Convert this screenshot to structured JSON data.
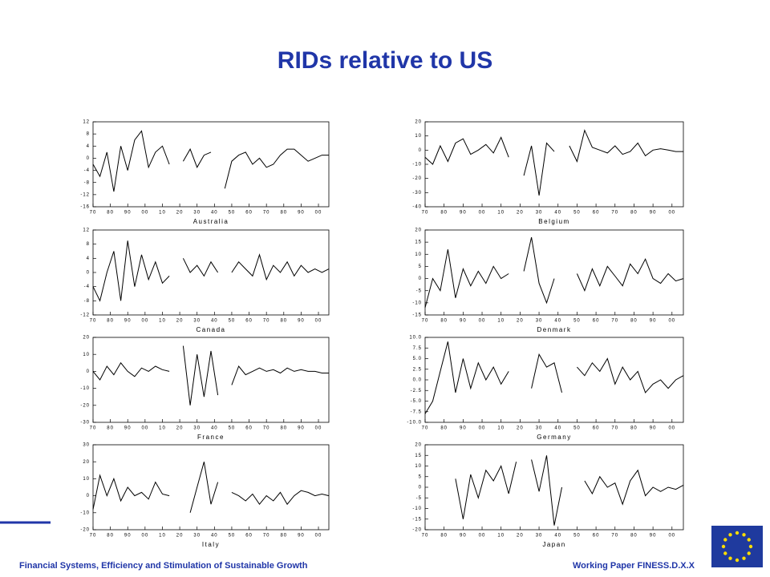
{
  "title": "RIDs relative to US",
  "footer": {
    "left": "Financial Systems, Efficiency and Stimulation of Sustainable Growth",
    "right": "Working Paper  FINESS.D.X.X"
  },
  "chart_data": [
    {
      "type": "line",
      "title": "Australia",
      "color": "#000000",
      "x": [
        1870,
        1874,
        1878,
        1882,
        1886,
        1890,
        1894,
        1898,
        1902,
        1906,
        1910,
        1914,
        1918,
        1922,
        1926,
        1930,
        1934,
        1938,
        1942,
        1946,
        1950,
        1954,
        1958,
        1962,
        1966,
        1970,
        1974,
        1978,
        1982,
        1986,
        1990,
        1994,
        1998,
        2002,
        2006
      ],
      "values": [
        -2,
        -6,
        2,
        -11,
        4,
        -4,
        6,
        9,
        -3,
        2,
        4,
        -2,
        null,
        -1,
        3,
        -3,
        1,
        2,
        null,
        -10,
        -1,
        1,
        2,
        -2,
        0,
        -3,
        -2,
        1,
        3,
        3,
        1,
        -1,
        0,
        1,
        1
      ],
      "ylim": [
        -16,
        12
      ],
      "yticks": [
        12,
        8,
        4,
        0,
        -4,
        -8,
        -12,
        -16
      ],
      "xlim": [
        1870,
        2006
      ],
      "xticks": [
        {
          "value": 1870,
          "label": "70"
        },
        {
          "value": 1880,
          "label": "80"
        },
        {
          "value": 1890,
          "label": "90"
        },
        {
          "value": 1900,
          "label": "00"
        },
        {
          "value": 1910,
          "label": "10"
        },
        {
          "value": 1920,
          "label": "20"
        },
        {
          "value": 1930,
          "label": "30"
        },
        {
          "value": 1940,
          "label": "40"
        },
        {
          "value": 1950,
          "label": "50"
        },
        {
          "value": 1960,
          "label": "60"
        },
        {
          "value": 1970,
          "label": "70"
        },
        {
          "value": 1980,
          "label": "80"
        },
        {
          "value": 1990,
          "label": "90"
        },
        {
          "value": 2000,
          "label": "00"
        }
      ]
    },
    {
      "type": "line",
      "title": "Belgium",
      "color": "#000000",
      "x": [
        1870,
        1874,
        1878,
        1882,
        1886,
        1890,
        1894,
        1898,
        1902,
        1906,
        1910,
        1914,
        1918,
        1922,
        1926,
        1930,
        1934,
        1938,
        1942,
        1946,
        1950,
        1954,
        1958,
        1962,
        1966,
        1970,
        1974,
        1978,
        1982,
        1986,
        1990,
        1994,
        1998,
        2002,
        2006
      ],
      "values": [
        -5,
        -10,
        3,
        -8,
        5,
        8,
        -3,
        0,
        4,
        -2,
        9,
        -5,
        null,
        -18,
        3,
        -32,
        5,
        -1,
        null,
        3,
        -8,
        14,
        2,
        0,
        -2,
        3,
        -3,
        -1,
        5,
        -4,
        0,
        1,
        0,
        -1,
        -1
      ],
      "ylim": [
        -40,
        20
      ],
      "yticks": [
        20,
        10,
        0,
        -10,
        -20,
        -30,
        -40
      ],
      "xlim": [
        1870,
        2006
      ],
      "xticks": [
        {
          "value": 1870,
          "label": "70"
        },
        {
          "value": 1880,
          "label": "80"
        },
        {
          "value": 1890,
          "label": "90"
        },
        {
          "value": 1900,
          "label": "00"
        },
        {
          "value": 1910,
          "label": "10"
        },
        {
          "value": 1920,
          "label": "20"
        },
        {
          "value": 1930,
          "label": "30"
        },
        {
          "value": 1940,
          "label": "40"
        },
        {
          "value": 1950,
          "label": "50"
        },
        {
          "value": 1960,
          "label": "60"
        },
        {
          "value": 1970,
          "label": "70"
        },
        {
          "value": 1980,
          "label": "80"
        },
        {
          "value": 1990,
          "label": "90"
        },
        {
          "value": 2000,
          "label": "00"
        }
      ]
    },
    {
      "type": "line",
      "title": "Canada",
      "color": "#000000",
      "x": [
        1870,
        1874,
        1878,
        1882,
        1886,
        1890,
        1894,
        1898,
        1902,
        1906,
        1910,
        1914,
        1918,
        1922,
        1926,
        1930,
        1934,
        1938,
        1942,
        1946,
        1950,
        1954,
        1958,
        1962,
        1966,
        1970,
        1974,
        1978,
        1982,
        1986,
        1990,
        1994,
        1998,
        2002,
        2006
      ],
      "values": [
        -4,
        -8,
        0,
        6,
        -8,
        9,
        -4,
        5,
        -2,
        3,
        -3,
        -1,
        null,
        4,
        0,
        2,
        -1,
        3,
        0,
        null,
        0,
        3,
        1,
        -1,
        5,
        -2,
        2,
        0,
        3,
        -1,
        2,
        0,
        1,
        0,
        1
      ],
      "ylim": [
        -12,
        12
      ],
      "yticks": [
        12,
        8,
        4,
        0,
        -4,
        -8,
        -12
      ],
      "xlim": [
        1870,
        2006
      ],
      "xticks": [
        {
          "value": 1870,
          "label": "70"
        },
        {
          "value": 1880,
          "label": "80"
        },
        {
          "value": 1890,
          "label": "90"
        },
        {
          "value": 1900,
          "label": "00"
        },
        {
          "value": 1910,
          "label": "10"
        },
        {
          "value": 1920,
          "label": "20"
        },
        {
          "value": 1930,
          "label": "30"
        },
        {
          "value": 1940,
          "label": "40"
        },
        {
          "value": 1950,
          "label": "50"
        },
        {
          "value": 1960,
          "label": "60"
        },
        {
          "value": 1970,
          "label": "70"
        },
        {
          "value": 1980,
          "label": "80"
        },
        {
          "value": 1990,
          "label": "90"
        },
        {
          "value": 2000,
          "label": "00"
        }
      ]
    },
    {
      "type": "line",
      "title": "Denmark",
      "color": "#000000",
      "x": [
        1870,
        1874,
        1878,
        1882,
        1886,
        1890,
        1894,
        1898,
        1902,
        1906,
        1910,
        1914,
        1918,
        1922,
        1926,
        1930,
        1934,
        1938,
        1942,
        1946,
        1950,
        1954,
        1958,
        1962,
        1966,
        1970,
        1974,
        1978,
        1982,
        1986,
        1990,
        1994,
        1998,
        2002,
        2006
      ],
      "values": [
        -12,
        0,
        -5,
        12,
        -8,
        4,
        -3,
        3,
        -2,
        5,
        0,
        2,
        null,
        3,
        17,
        -2,
        -10,
        0,
        null,
        null,
        2,
        -5,
        4,
        -3,
        5,
        1,
        -3,
        6,
        2,
        8,
        0,
        -2,
        2,
        -1,
        0
      ],
      "ylim": [
        -15,
        20
      ],
      "yticks": [
        20,
        15,
        10,
        5,
        0,
        -5,
        -10,
        -15
      ],
      "xlim": [
        1870,
        2006
      ],
      "xticks": [
        {
          "value": 1870,
          "label": "70"
        },
        {
          "value": 1880,
          "label": "80"
        },
        {
          "value": 1890,
          "label": "90"
        },
        {
          "value": 1900,
          "label": "00"
        },
        {
          "value": 1910,
          "label": "10"
        },
        {
          "value": 1920,
          "label": "20"
        },
        {
          "value": 1930,
          "label": "30"
        },
        {
          "value": 1940,
          "label": "40"
        },
        {
          "value": 1950,
          "label": "50"
        },
        {
          "value": 1960,
          "label": "60"
        },
        {
          "value": 1970,
          "label": "70"
        },
        {
          "value": 1980,
          "label": "80"
        },
        {
          "value": 1990,
          "label": "90"
        },
        {
          "value": 2000,
          "label": "00"
        }
      ]
    },
    {
      "type": "line",
      "title": "France",
      "color": "#000000",
      "x": [
        1870,
        1874,
        1878,
        1882,
        1886,
        1890,
        1894,
        1898,
        1902,
        1906,
        1910,
        1914,
        1918,
        1922,
        1926,
        1930,
        1934,
        1938,
        1942,
        1946,
        1950,
        1954,
        1958,
        1962,
        1966,
        1970,
        1974,
        1978,
        1982,
        1986,
        1990,
        1994,
        1998,
        2002,
        2006
      ],
      "values": [
        0,
        -5,
        3,
        -2,
        5,
        0,
        -3,
        2,
        0,
        3,
        1,
        0,
        null,
        15,
        -20,
        10,
        -15,
        12,
        -14,
        null,
        -8,
        3,
        -2,
        0,
        2,
        0,
        1,
        -1,
        2,
        0,
        1,
        0,
        0,
        -1,
        -1
      ],
      "ylim": [
        -30,
        20
      ],
      "yticks": [
        20,
        10,
        0,
        -10,
        -20,
        -30
      ],
      "xlim": [
        1870,
        2006
      ],
      "xticks": [
        {
          "value": 1870,
          "label": "70"
        },
        {
          "value": 1880,
          "label": "80"
        },
        {
          "value": 1890,
          "label": "90"
        },
        {
          "value": 1900,
          "label": "00"
        },
        {
          "value": 1910,
          "label": "10"
        },
        {
          "value": 1920,
          "label": "20"
        },
        {
          "value": 1930,
          "label": "30"
        },
        {
          "value": 1940,
          "label": "40"
        },
        {
          "value": 1950,
          "label": "50"
        },
        {
          "value": 1960,
          "label": "60"
        },
        {
          "value": 1970,
          "label": "70"
        },
        {
          "value": 1980,
          "label": "80"
        },
        {
          "value": 1990,
          "label": "90"
        },
        {
          "value": 2000,
          "label": "00"
        }
      ]
    },
    {
      "type": "line",
      "title": "Germany",
      "color": "#000000",
      "x": [
        1870,
        1874,
        1878,
        1882,
        1886,
        1890,
        1894,
        1898,
        1902,
        1906,
        1910,
        1914,
        1918,
        1922,
        1926,
        1930,
        1934,
        1938,
        1942,
        1946,
        1950,
        1954,
        1958,
        1962,
        1966,
        1970,
        1974,
        1978,
        1982,
        1986,
        1990,
        1994,
        1998,
        2002,
        2006
      ],
      "values": [
        -8,
        -5,
        2,
        9,
        -3,
        5,
        -2,
        4,
        0,
        3,
        -1,
        2,
        null,
        null,
        -2,
        6,
        3,
        4,
        -3,
        null,
        3,
        1,
        4,
        2,
        5,
        -1,
        3,
        0,
        2,
        -3,
        -1,
        0,
        -2,
        0,
        1
      ],
      "ylim": [
        -10,
        10
      ],
      "yticks": [
        {
          "value": 10,
          "label": "10.0"
        },
        7.5,
        {
          "value": 5,
          "label": "5.0"
        },
        2.5,
        {
          "value": 0,
          "label": "0.0"
        },
        -2.5,
        {
          "value": -5,
          "label": "-5.0"
        },
        -7.5,
        {
          "value": -10,
          "label": "-10.0"
        }
      ],
      "xlim": [
        1870,
        2006
      ],
      "xticks": [
        {
          "value": 1870,
          "label": "70"
        },
        {
          "value": 1880,
          "label": "80"
        },
        {
          "value": 1890,
          "label": "90"
        },
        {
          "value": 1900,
          "label": "00"
        },
        {
          "value": 1910,
          "label": "10"
        },
        {
          "value": 1920,
          "label": "20"
        },
        {
          "value": 1930,
          "label": "30"
        },
        {
          "value": 1940,
          "label": "40"
        },
        {
          "value": 1950,
          "label": "50"
        },
        {
          "value": 1960,
          "label": "60"
        },
        {
          "value": 1970,
          "label": "70"
        },
        {
          "value": 1980,
          "label": "80"
        },
        {
          "value": 1990,
          "label": "90"
        },
        {
          "value": 2000,
          "label": "00"
        }
      ]
    },
    {
      "type": "line",
      "title": "Italy",
      "color": "#000000",
      "x": [
        1870,
        1874,
        1878,
        1882,
        1886,
        1890,
        1894,
        1898,
        1902,
        1906,
        1910,
        1914,
        1918,
        1922,
        1926,
        1930,
        1934,
        1938,
        1942,
        1946,
        1950,
        1954,
        1958,
        1962,
        1966,
        1970,
        1974,
        1978,
        1982,
        1986,
        1990,
        1994,
        1998,
        2002,
        2006
      ],
      "values": [
        -8,
        12,
        0,
        10,
        -3,
        5,
        0,
        2,
        -2,
        8,
        1,
        0,
        null,
        null,
        -10,
        5,
        20,
        -5,
        8,
        null,
        2,
        0,
        -3,
        1,
        -5,
        0,
        -3,
        2,
        -5,
        0,
        3,
        2,
        0,
        1,
        0
      ],
      "ylim": [
        -20,
        30
      ],
      "yticks": [
        30,
        20,
        10,
        0,
        -10,
        -20
      ],
      "xlim": [
        1870,
        2006
      ],
      "xticks": [
        {
          "value": 1870,
          "label": "70"
        },
        {
          "value": 1880,
          "label": "80"
        },
        {
          "value": 1890,
          "label": "90"
        },
        {
          "value": 1900,
          "label": "00"
        },
        {
          "value": 1910,
          "label": "10"
        },
        {
          "value": 1920,
          "label": "20"
        },
        {
          "value": 1930,
          "label": "30"
        },
        {
          "value": 1940,
          "label": "40"
        },
        {
          "value": 1950,
          "label": "50"
        },
        {
          "value": 1960,
          "label": "60"
        },
        {
          "value": 1970,
          "label": "70"
        },
        {
          "value": 1980,
          "label": "80"
        },
        {
          "value": 1990,
          "label": "90"
        },
        {
          "value": 2000,
          "label": "00"
        }
      ]
    },
    {
      "type": "line",
      "title": "Japan",
      "color": "#000000",
      "x": [
        1870,
        1874,
        1878,
        1882,
        1886,
        1890,
        1894,
        1898,
        1902,
        1906,
        1910,
        1914,
        1918,
        1922,
        1926,
        1930,
        1934,
        1938,
        1942,
        1946,
        1950,
        1954,
        1958,
        1962,
        1966,
        1970,
        1974,
        1978,
        1982,
        1986,
        1990,
        1994,
        1998,
        2002,
        2006
      ],
      "values": [
        null,
        null,
        null,
        null,
        4,
        -15,
        6,
        -5,
        8,
        3,
        10,
        -3,
        12,
        null,
        13,
        -2,
        15,
        -18,
        0,
        null,
        null,
        3,
        -3,
        5,
        0,
        2,
        -8,
        3,
        8,
        -4,
        0,
        -2,
        0,
        -1,
        1
      ],
      "ylim": [
        -20,
        20
      ],
      "yticks": [
        20,
        15,
        10,
        5,
        0,
        -5,
        -10,
        -15,
        -20
      ],
      "xlim": [
        1870,
        2006
      ],
      "xticks": [
        {
          "value": 1870,
          "label": "70"
        },
        {
          "value": 1880,
          "label": "80"
        },
        {
          "value": 1890,
          "label": "90"
        },
        {
          "value": 1900,
          "label": "00"
        },
        {
          "value": 1910,
          "label": "10"
        },
        {
          "value": 1920,
          "label": "20"
        },
        {
          "value": 1930,
          "label": "30"
        },
        {
          "value": 1940,
          "label": "40"
        },
        {
          "value": 1950,
          "label": "50"
        },
        {
          "value": 1960,
          "label": "60"
        },
        {
          "value": 1970,
          "label": "70"
        },
        {
          "value": 1980,
          "label": "80"
        },
        {
          "value": 1990,
          "label": "90"
        },
        {
          "value": 2000,
          "label": "00"
        }
      ]
    }
  ]
}
